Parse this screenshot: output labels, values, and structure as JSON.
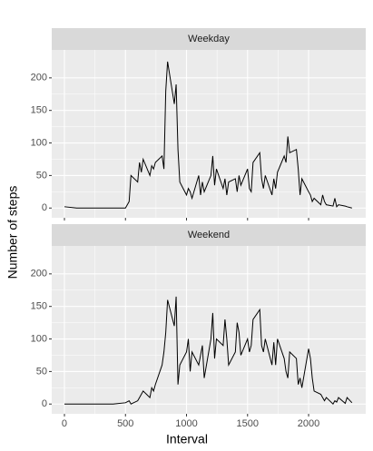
{
  "chart_data": {
    "type": "line",
    "x_label": "Interval",
    "y_label": "Number of steps",
    "x": [
      0,
      100,
      200,
      300,
      400,
      500,
      530,
      545,
      600,
      615,
      630,
      645,
      700,
      715,
      730,
      745,
      800,
      815,
      830,
      845,
      900,
      915,
      930,
      945,
      1000,
      1015,
      1030,
      1045,
      1100,
      1115,
      1130,
      1145,
      1200,
      1215,
      1230,
      1245,
      1300,
      1315,
      1330,
      1345,
      1400,
      1415,
      1430,
      1445,
      1500,
      1515,
      1530,
      1545,
      1600,
      1615,
      1630,
      1645,
      1700,
      1715,
      1730,
      1745,
      1800,
      1815,
      1830,
      1845,
      1900,
      1915,
      1930,
      1945,
      2000,
      2015,
      2030,
      2045,
      2100,
      2115,
      2130,
      2145,
      2200,
      2215,
      2230,
      2245,
      2300,
      2315,
      2355
    ],
    "series": [
      {
        "name": "Weekday",
        "color": "#000000",
        "values": [
          2,
          0,
          0,
          0,
          0,
          0,
          10,
          50,
          40,
          70,
          55,
          75,
          50,
          65,
          60,
          70,
          80,
          60,
          180,
          225,
          160,
          190,
          90,
          40,
          20,
          30,
          25,
          15,
          50,
          20,
          40,
          25,
          50,
          80,
          35,
          60,
          30,
          45,
          20,
          40,
          45,
          25,
          50,
          35,
          60,
          30,
          25,
          70,
          85,
          45,
          30,
          50,
          20,
          45,
          30,
          55,
          80,
          70,
          110,
          85,
          90,
          60,
          20,
          45,
          25,
          20,
          10,
          15,
          5,
          20,
          10,
          5,
          3,
          15,
          2,
          5,
          3,
          2,
          0
        ]
      },
      {
        "name": "Weekend",
        "color": "#000000",
        "values": [
          0,
          0,
          0,
          0,
          0,
          2,
          5,
          0,
          5,
          10,
          15,
          20,
          10,
          25,
          20,
          30,
          60,
          80,
          110,
          160,
          120,
          165,
          30,
          60,
          80,
          100,
          50,
          80,
          60,
          75,
          90,
          40,
          100,
          140,
          70,
          100,
          90,
          130,
          100,
          60,
          80,
          125,
          110,
          75,
          100,
          80,
          90,
          130,
          145,
          90,
          80,
          100,
          60,
          95,
          60,
          100,
          70,
          50,
          40,
          80,
          70,
          30,
          40,
          25,
          85,
          70,
          40,
          20,
          15,
          10,
          5,
          10,
          0,
          5,
          3,
          10,
          1,
          10,
          2
        ]
      }
    ],
    "xlim": [
      -104,
      2468
    ],
    "xticks": [
      0,
      500,
      1000,
      1500,
      2000
    ],
    "ylim": [
      -15,
      243
    ],
    "yticks": [
      0,
      50,
      100,
      150,
      200
    ],
    "grid": true
  }
}
